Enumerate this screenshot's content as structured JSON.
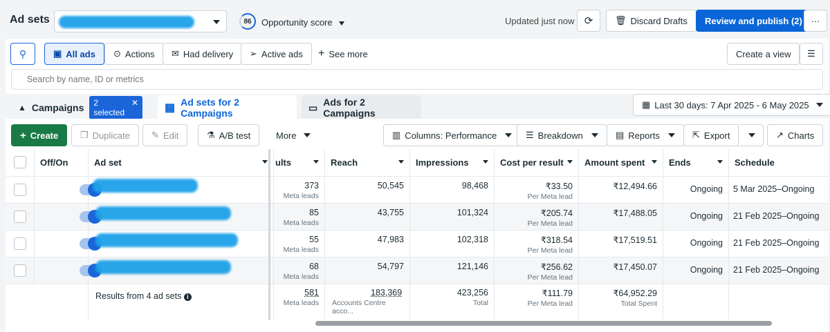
{
  "header": {
    "title": "Ad sets",
    "opportunity_score": "86",
    "opportunity_label": "Opportunity score",
    "updated": "Updated just now",
    "discard_label": "Discard Drafts",
    "publish_label": "Review and publish (2)",
    "more_label": "···"
  },
  "filters": {
    "all_ads": "All ads",
    "actions": "Actions",
    "had_delivery": "Had delivery",
    "active_ads": "Active ads",
    "see_more": "See more",
    "create_view": "Create a view",
    "search_placeholder": "Search by name, ID or metrics"
  },
  "tabs": {
    "campaigns": "Campaigns",
    "selected": "2 selected",
    "adsets": "Ad sets for 2 Campaigns",
    "ads": "Ads for 2 Campaigns",
    "date_range": "Last 30 days: 7 Apr 2025 - 6 May 2025"
  },
  "toolbar": {
    "create": "Create",
    "duplicate": "Duplicate",
    "edit": "Edit",
    "ab_test": "A/B test",
    "more": "More",
    "columns": "Columns: Performance",
    "breakdown": "Breakdown",
    "reports": "Reports",
    "export": "Export",
    "charts": "Charts"
  },
  "table": {
    "headers": {
      "off_on": "Off/On",
      "ad_set": "Ad set",
      "results": "ults",
      "reach": "Reach",
      "impressions": "Impressions",
      "cost_per_result": "Cost per result",
      "amount_spent": "Amount spent",
      "ends": "Ends",
      "schedule": "Schedule"
    },
    "rows": [
      {
        "results": "373",
        "results_sub": "Meta leads",
        "reach": "50,545",
        "impressions": "98,468",
        "cost": "₹33.50",
        "cost_sub": "Per Meta lead",
        "spent": "₹12,494.66",
        "ends": "Ongoing",
        "schedule": "5 Mar 2025–Ongoing"
      },
      {
        "results": "85",
        "results_sub": "Meta leads",
        "reach": "43,755",
        "impressions": "101,324",
        "cost": "₹205.74",
        "cost_sub": "Per Meta lead",
        "spent": "₹17,488.05",
        "ends": "Ongoing",
        "schedule": "21 Feb 2025–Ongoing"
      },
      {
        "results": "55",
        "results_sub": "Meta leads",
        "reach": "47,983",
        "impressions": "102,318",
        "cost": "₹318.54",
        "cost_sub": "Per Meta lead",
        "spent": "₹17,519.51",
        "ends": "Ongoing",
        "schedule": "21 Feb 2025–Ongoing"
      },
      {
        "results": "68",
        "results_sub": "Meta leads",
        "reach": "54,797",
        "impressions": "121,146",
        "cost": "₹256.62",
        "cost_sub": "Per Meta lead",
        "spent": "₹17,450.07",
        "ends": "Ongoing",
        "schedule": "21 Feb 2025–Ongoing"
      }
    ],
    "summary": {
      "label": "Results from 4 ad sets",
      "results": "581",
      "results_sub": "Meta leads",
      "reach": "183,369",
      "reach_sub": "Accounts Centre acco...",
      "impressions": "423,256",
      "impressions_sub": "Total",
      "cost": "₹111.79",
      "cost_sub": "Per Meta lead",
      "spent": "₹64,952.29",
      "spent_sub": "Total Spent"
    }
  },
  "colors": {
    "primary": "#0a66d8",
    "create_green": "#197a45",
    "redaction": "#1ea1e8"
  }
}
